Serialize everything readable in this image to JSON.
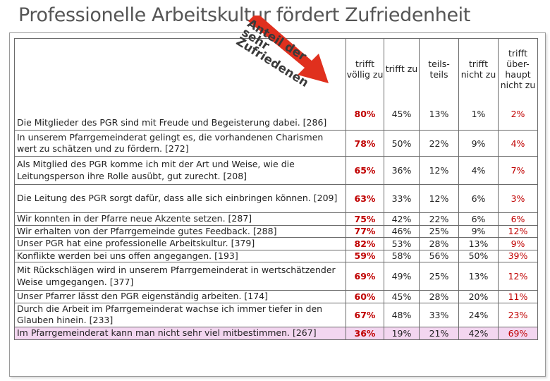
{
  "title": "Professionelle Arbeitskultur  fördert Zufriedenheit",
  "arrow_label": "Anteil der sehr Zufriedenen",
  "colors": {
    "accent_red": "#c00000",
    "arrow_red": "#e0301e",
    "pink_row": "#f3d6f0"
  },
  "columns": {
    "c1": "trifft völlig zu",
    "c2": "trifft zu",
    "c3": "teils-teils",
    "c4": "trifft nicht zu",
    "c5": "trifft über-haupt nicht zu"
  },
  "header_statement": "Die Mitglieder des PGR sind mit Freude und Begeisterung dabei. [286]",
  "header_values": [
    "80%",
    "45%",
    "13%",
    "1%",
    "2%"
  ],
  "rows": [
    {
      "statement": "In unserem Pfarrgemeinderat gelingt es, die vorhandenen Charismen wert zu schätzen und zu fördern. [272]",
      "values": [
        "78%",
        "50%",
        "22%",
        "9%",
        "4%"
      ]
    },
    {
      "statement": "Als Mitglied des PGR komme ich mit der Art und Weise, wie die Leitungsperson ihre Rolle ausübt, gut zurecht. [208]",
      "values": [
        "65%",
        "36%",
        "12%",
        "4%",
        "7%"
      ]
    },
    {
      "statement": "Die Leitung des PGR sorgt dafür, dass alle sich einbringen können. [209]",
      "values": [
        "63%",
        "33%",
        "12%",
        "6%",
        "3%"
      ]
    },
    {
      "statement": "Wir konnten in der Pfarre neue Akzente setzen. [287]",
      "values": [
        "75%",
        "42%",
        "22%",
        "6%",
        "6%"
      ]
    },
    {
      "statement": "Wir erhalten von der Pfarrgemeinde gutes Feedback. [288]",
      "values": [
        "77%",
        "46%",
        "25%",
        "9%",
        "12%"
      ]
    },
    {
      "statement": "Unser PGR hat eine professionelle Arbeitskultur. [379]",
      "values": [
        "82%",
        "53%",
        "28%",
        "13%",
        "9%"
      ]
    },
    {
      "statement": "Konflikte werden bei uns offen angegangen. [193]",
      "values": [
        "59%",
        "58%",
        "56%",
        "50%",
        "39%"
      ]
    },
    {
      "statement": "Mit Rückschlägen wird in unserem Pfarrgemeinderat in wertschätzender Weise umgegangen. [377]",
      "values": [
        "69%",
        "49%",
        "25%",
        "13%",
        "12%"
      ]
    },
    {
      "statement": "Unser Pfarrer lässt den PGR eigenständig arbeiten. [174]",
      "values": [
        "60%",
        "45%",
        "28%",
        "20%",
        "11%"
      ]
    },
    {
      "statement": "Durch die Arbeit im Pfarrgemeinderat wachse ich immer tiefer in den Glauben hinein. [233]",
      "values": [
        "67%",
        "48%",
        "33%",
        "24%",
        "23%"
      ]
    },
    {
      "statement": "Im Pfarrgemeinderat kann man nicht sehr viel mitbestimmen. [267]",
      "values": [
        "36%",
        "19%",
        "21%",
        "42%",
        "69%"
      ]
    }
  ]
}
